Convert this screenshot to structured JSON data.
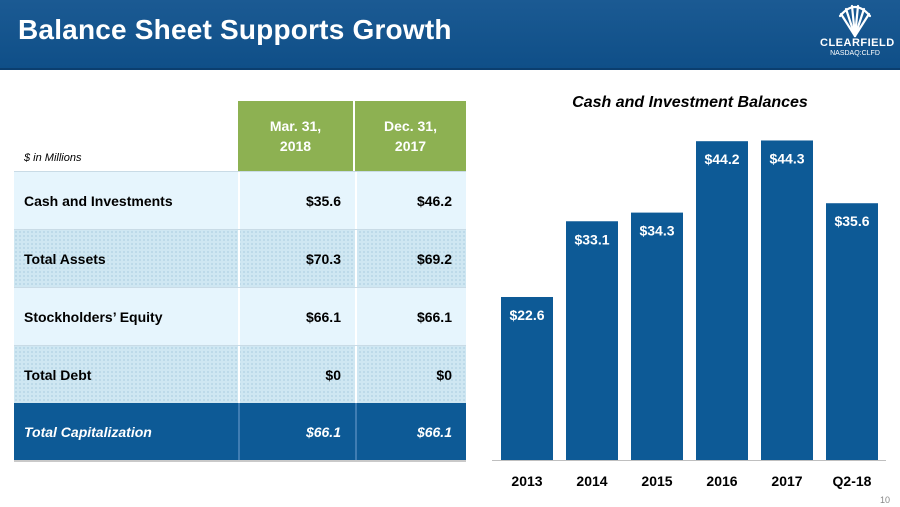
{
  "header": {
    "title": "Balance Sheet Supports Growth",
    "logo_brand": "CLEARFIELD",
    "logo_ticker": "NASDAQ:CLFD"
  },
  "table": {
    "units_note": "$ in Millions",
    "col1": {
      "line1": "Mar. 31,",
      "line2": "2018"
    },
    "col2": {
      "line1": "Dec. 31,",
      "line2": "2017"
    },
    "rows": [
      {
        "label": "Cash and Investments",
        "v1": "$35.6",
        "v2": "$46.2"
      },
      {
        "label": "Total Assets",
        "v1": "$70.3",
        "v2": "$69.2"
      },
      {
        "label": "Stockholders’ Equity",
        "v1": "$66.1",
        "v2": "$66.1"
      },
      {
        "label": "Total Debt",
        "v1": "$0",
        "v2": "$0"
      },
      {
        "label": "Total Capitalization",
        "v1": "$66.1",
        "v2": "$66.1"
      }
    ]
  },
  "chart_data": {
    "type": "bar",
    "title": "Cash and Investment Balances",
    "categories": [
      "2013",
      "2014",
      "2015",
      "2016",
      "2017",
      "Q2-18"
    ],
    "values": [
      22.6,
      33.1,
      34.3,
      44.2,
      44.3,
      35.6
    ],
    "data_labels": [
      "$22.6",
      "$33.1",
      "$34.3",
      "$44.2",
      "$44.3",
      "$35.6"
    ],
    "ylim": [
      0,
      47
    ],
    "xlabel": "",
    "ylabel": "",
    "bar_color": "#0d5a96"
  },
  "page_number": "10",
  "colors": {
    "header_blue": "#1b5a93",
    "table_header_green": "#8db152",
    "total_row_blue": "#0d5a96"
  }
}
